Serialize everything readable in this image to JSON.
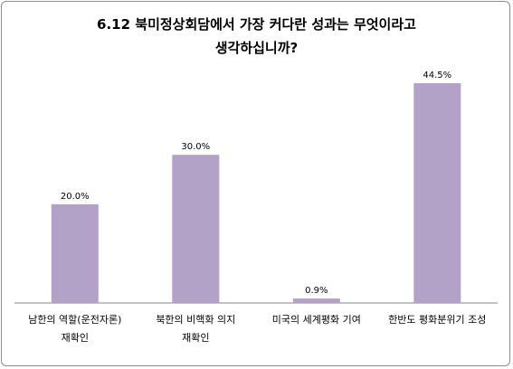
{
  "chart_data": {
    "type": "bar",
    "title_lines": [
      "6.12 북미정상회담에서 가장 커다란 성과는 무엇이라고",
      "생각하십니까?"
    ],
    "categories": [
      [
        "남한의 역할(운전자론)",
        "재확인"
      ],
      [
        "북한의 비핵화 의지",
        "재확인"
      ],
      [
        "미국의 세계평화 기여"
      ],
      [
        "한반도 평화분위기 조성"
      ]
    ],
    "values": [
      20.0,
      30.0,
      0.9,
      44.5
    ],
    "value_labels": [
      "20.0%",
      "30.0%",
      "0.9%",
      "44.5%"
    ],
    "ylim": [
      0,
      50
    ],
    "bar_color": "#b3a2c7",
    "axis_color": "#868686",
    "grid": false,
    "legend": "none"
  }
}
